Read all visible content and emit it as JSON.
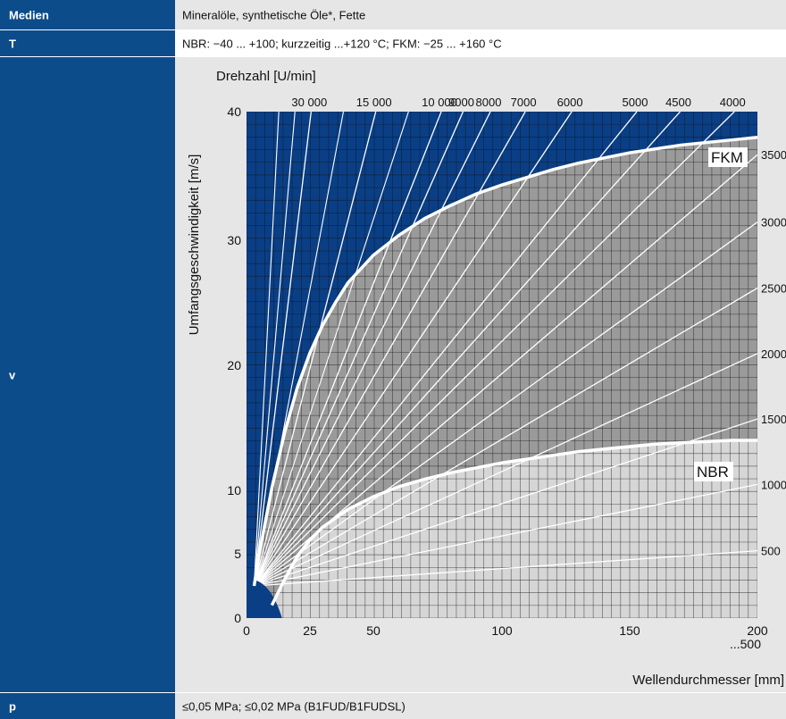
{
  "rows": [
    {
      "label": "Medien",
      "value": "Mineralöle, synthetische Öle*, Fette"
    },
    {
      "label": "T",
      "value": "NBR: −40 ... +100; kurzzeitig ...+120 °C; FKM: −25 ... +160 °C"
    },
    {
      "label": "v",
      "value": ""
    },
    {
      "label": "p",
      "value": "≤0,05 MPa; ≤0,02 MPa (B1FUD/B1FUDSL)"
    }
  ],
  "colors": {
    "label_bg": "#0d4c8b",
    "cell_bg": "#e6e6e6",
    "fkm_region": "#9a9a9a",
    "nbr_region": "#d6d6d6",
    "above": "#0a3f86"
  },
  "chart_data": {
    "type": "line",
    "top_axis_label": "Drehzahl [U/min]",
    "ylabel": "Umfangsgeschwindigkeit [m/s]",
    "xlabel": "Wellendurchmesser [mm]",
    "xlim": [
      0,
      200
    ],
    "ylim": [
      0,
      40
    ],
    "x_ticks": [
      "0",
      "25",
      "50",
      "100",
      "150",
      "200"
    ],
    "x_tick_note": "...500",
    "y_ticks": [
      "0",
      "5",
      "10",
      "20",
      "30",
      "40"
    ],
    "rpm_top": [
      {
        "label": "30 000",
        "rpm": 30000
      },
      {
        "label": "15 000",
        "rpm": 15000
      },
      {
        "label": "10 000",
        "rpm": 10000
      },
      {
        "label": "9000",
        "rpm": 9000
      },
      {
        "label": "8000",
        "rpm": 8000
      },
      {
        "label": "7000",
        "rpm": 7000
      },
      {
        "label": "6000",
        "rpm": 6000
      },
      {
        "label": "5000",
        "rpm": 5000
      },
      {
        "label": "4500",
        "rpm": 4500
      },
      {
        "label": "4000",
        "rpm": 4000
      }
    ],
    "rpm_right": [
      {
        "label": "3500",
        "rpm": 3500
      },
      {
        "label": "3000",
        "rpm": 3000
      },
      {
        "label": "2500",
        "rpm": 2500
      },
      {
        "label": "2000",
        "rpm": 2000
      },
      {
        "label": "1500",
        "rpm": 1500
      },
      {
        "label": "1000",
        "rpm": 1000
      },
      {
        "label": "500",
        "rpm": 500
      }
    ],
    "series": [
      {
        "name": "FKM",
        "x": [
          3,
          5,
          10,
          15,
          20,
          25,
          30,
          35,
          40,
          50,
          60,
          70,
          80,
          90,
          100,
          110,
          120,
          130,
          140,
          150,
          160,
          170,
          180,
          190,
          200
        ],
        "y": [
          2.5,
          5,
          10.2,
          14.6,
          18.2,
          21,
          23.2,
          25,
          26.6,
          28.8,
          30.4,
          31.7,
          32.7,
          33.6,
          34.3,
          34.9,
          35.5,
          36,
          36.4,
          36.8,
          37.1,
          37.4,
          37.6,
          37.8,
          38
        ]
      },
      {
        "name": "NBR",
        "x": [
          10,
          15,
          20,
          25,
          30,
          40,
          50,
          60,
          70,
          80,
          90,
          100,
          110,
          120,
          130,
          140,
          150,
          160,
          170,
          180,
          190,
          200
        ],
        "y": [
          1,
          3,
          4.8,
          6.1,
          7.1,
          8.5,
          9.5,
          10.3,
          10.9,
          11.4,
          11.8,
          12.2,
          12.5,
          12.8,
          13.1,
          13.3,
          13.5,
          13.7,
          13.8,
          13.9,
          14,
          14
        ]
      }
    ]
  }
}
